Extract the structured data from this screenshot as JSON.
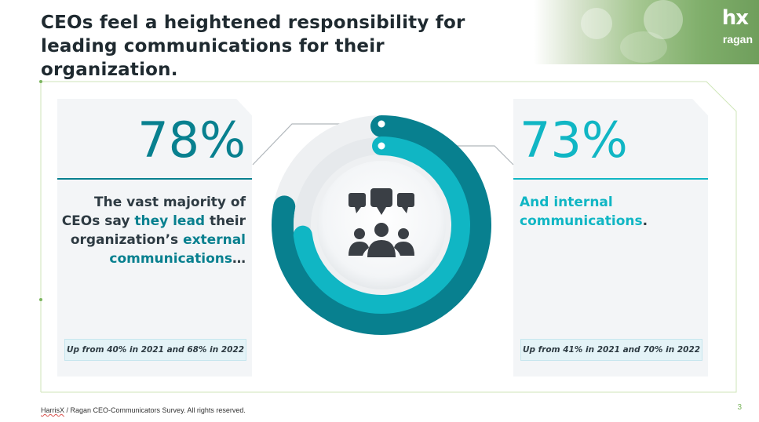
{
  "slide": {
    "title": "CEOs feel a heightened responsibility for leading communications for their organization.",
    "page_number": "3",
    "footer_source_name": "HarrisX",
    "footer_rest": " / Ragan CEO-Communicators Survey. All rights reserved."
  },
  "logo": {
    "mark": "hx",
    "sub": "ragan"
  },
  "left_stat": {
    "percent": "78%",
    "value": 78,
    "desc_part1": "The vast majority of CEOs say ",
    "desc_highlight1": "they lead",
    "desc_part2": " their organization’s ",
    "desc_highlight2": "external communications",
    "desc_part3": "…",
    "note": "Up from 40% in 2021 and 68% in 2022"
  },
  "right_stat": {
    "percent": "73%",
    "value": 73,
    "desc_highlight": "And internal communications",
    "desc_end": ".",
    "note": "Up from 41% in 2021 and 70% in 2022"
  },
  "colors": {
    "dark_teal": "#08808f",
    "light_teal": "#10b6c4",
    "frame_green": "#b5d98f",
    "icon_gray": "#3a3f45"
  },
  "icons": {
    "center": "people-chat-icon"
  }
}
